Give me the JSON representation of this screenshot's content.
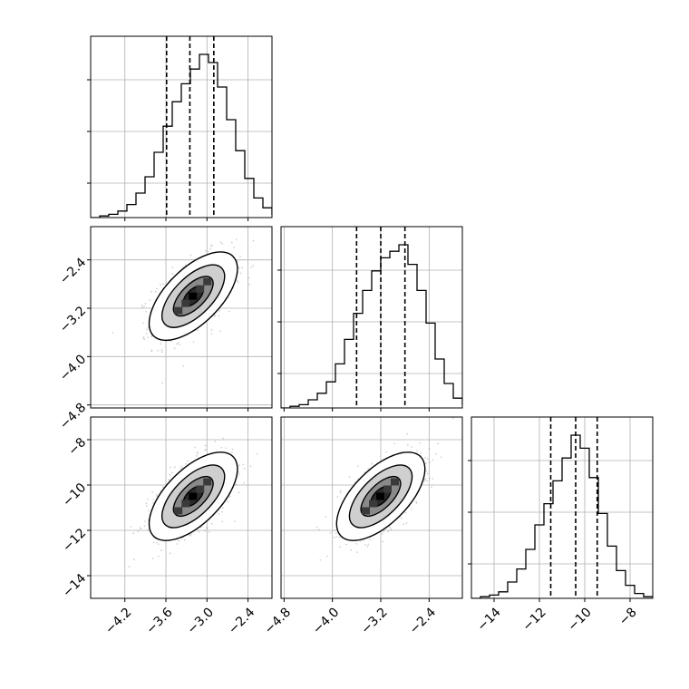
{
  "chart_data": {
    "type": "corner",
    "title": "",
    "grid": true,
    "parameters": [
      {
        "range": [
          -4.7,
          -2.05
        ],
        "ticks": [
          -4.2,
          -3.6,
          -3.0,
          -2.4
        ],
        "tick_labels": [
          "−4.2",
          "−3.6",
          "−3.0",
          "−2.4"
        ],
        "quantiles": [
          -3.59,
          -3.25,
          -2.9
        ],
        "hist_start": -4.7,
        "hist_step": 0.1325,
        "hist_counts": [
          0,
          1,
          2,
          4,
          8,
          15,
          25,
          40,
          56,
          71,
          82,
          91,
          100,
          95,
          80,
          60,
          41,
          24,
          12,
          6,
          2
        ]
      },
      {
        "range": [
          -4.85,
          -1.85
        ],
        "ticks": [
          -4.8,
          -4.0,
          -3.2,
          -2.4
        ],
        "tick_labels": [
          "−4.8",
          "−4.0",
          "−3.2",
          "−2.4"
        ],
        "quantiles": [
          -3.6,
          -3.2,
          -2.8
        ],
        "hist_start": -4.85,
        "hist_step": 0.15,
        "hist_counts": [
          0,
          1,
          2,
          5,
          9,
          16,
          27,
          42,
          58,
          72,
          84,
          92,
          96,
          100,
          88,
          72,
          52,
          30,
          15,
          6,
          2
        ]
      },
      {
        "range": [
          -15.0,
          -7.0
        ],
        "ticks": [
          -14,
          -12,
          -10,
          -8
        ],
        "tick_labels": [
          "−14",
          "−12",
          "−10",
          "−8"
        ],
        "quantiles": [
          -11.5,
          -10.4,
          -9.45
        ],
        "hist_start": -15.0,
        "hist_step": 0.4,
        "hist_counts": [
          0,
          1,
          2,
          4,
          10,
          18,
          30,
          45,
          58,
          72,
          86,
          100,
          92,
          74,
          52,
          32,
          17,
          8,
          3,
          1
        ]
      }
    ],
    "pairs": [
      {
        "x": 0,
        "y": 1,
        "center": [
          -3.2,
          -3.0
        ],
        "rho": 0.55
      },
      {
        "x": 0,
        "y": 2,
        "center": [
          -3.2,
          -10.5
        ],
        "rho": 0.55
      },
      {
        "x": 1,
        "y": 2,
        "center": [
          -3.2,
          -10.5
        ],
        "rho": 0.6
      }
    ]
  }
}
